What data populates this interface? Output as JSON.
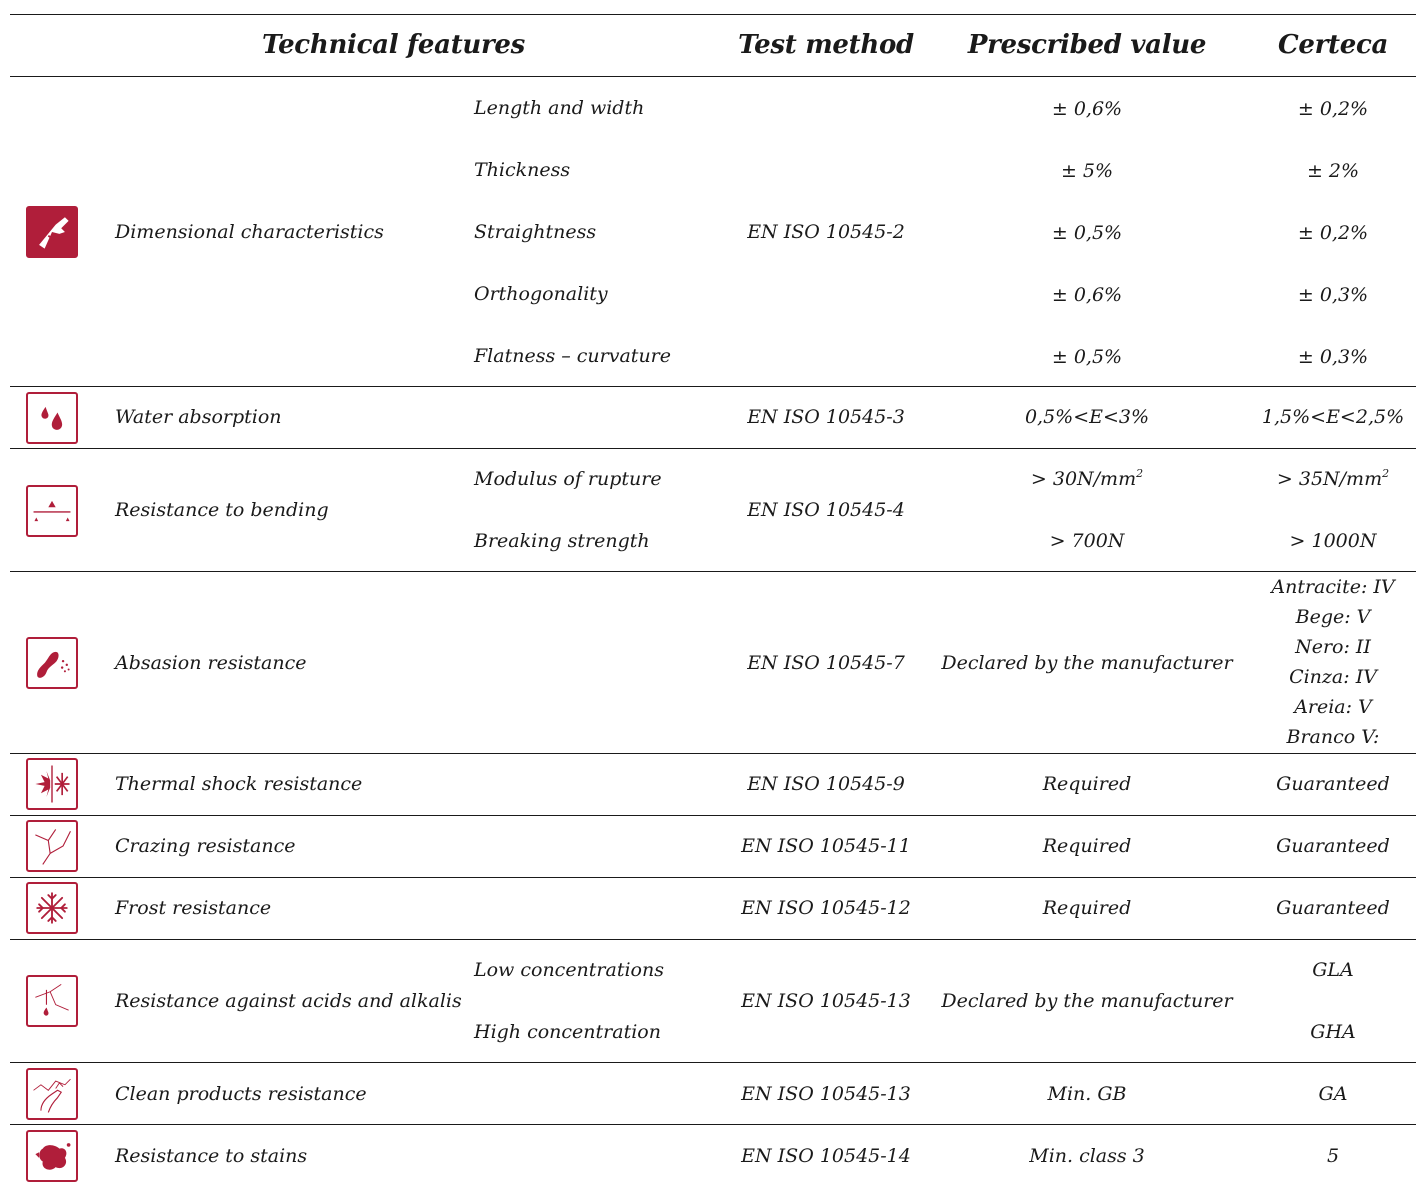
{
  "header": {
    "technical_features": "Technical features",
    "test_method": "Test method",
    "prescribed_value": "Prescribed value",
    "certeca": "Certeca"
  },
  "rows": [
    {
      "feature": "Dimensional characteristics",
      "icon": "caliper-icon",
      "method": "EN ISO 10545-2",
      "subs": [
        {
          "name": "Length and width",
          "prescribed": "± 0,6%",
          "certeca": "± 0,2%"
        },
        {
          "name": "Thickness",
          "prescribed": "± 5%",
          "certeca": "± 2%"
        },
        {
          "name": "Straightness",
          "prescribed": "± 0,5%",
          "certeca": "± 0,2%"
        },
        {
          "name": "Orthogonality",
          "prescribed": "± 0,6%",
          "certeca": "± 0,3%"
        },
        {
          "name": "Flatness – curvature",
          "prescribed": "± 0,5%",
          "certeca": "± 0,3%"
        }
      ]
    },
    {
      "feature": "Water absorption",
      "icon": "water-drops-icon",
      "method": "EN ISO 10545-3",
      "prescribed": "0,5%<E<3%",
      "certeca": "1,5%<E<2,5%"
    },
    {
      "feature": "Resistance to bending",
      "icon": "bending-icon",
      "method": "EN ISO 10545-4",
      "subs": [
        {
          "name": "Modulus of rupture",
          "prescribed": "> 30N/mm",
          "prescribed_sup": "2",
          "certeca": "> 35N/mm",
          "certeca_sup": "2"
        },
        {
          "name": "Breaking strength",
          "prescribed": "> 700N",
          "certeca": "> 1000N"
        }
      ]
    },
    {
      "feature": "Absasion resistance",
      "icon": "footprint-abrasion-icon",
      "method": "EN ISO 10545-7",
      "prescribed": "Declared by the manufacturer",
      "certeca_lines": [
        "Antracite: IV",
        "Bege: V",
        "Nero: II",
        "Cinza: IV",
        "Areia: V",
        "Branco V:"
      ]
    },
    {
      "feature": "Thermal shock resistance",
      "icon": "thermal-shock-icon",
      "method": "EN ISO 10545-9",
      "prescribed": "Required",
      "certeca": "Guaranteed"
    },
    {
      "feature": "Crazing resistance",
      "icon": "crazing-crack-icon",
      "method": "EN ISO 10545-11",
      "prescribed": "Required",
      "certeca": "Guaranteed"
    },
    {
      "feature": "Frost resistance",
      "icon": "snowflake-icon",
      "method": "EN ISO 10545-12",
      "prescribed": "Required",
      "certeca": "Guaranteed"
    },
    {
      "feature": "Resistance against acids and alkalis",
      "icon": "acid-drop-icon",
      "method": "EN ISO 10545-13",
      "prescribed": "Declared by the manufacturer",
      "subs": [
        {
          "name": "Low concentrations",
          "certeca": "GLA"
        },
        {
          "name": "High concentration",
          "certeca": "GHA"
        }
      ]
    },
    {
      "feature": "Clean products resistance",
      "icon": "cleaning-product-icon",
      "method": "EN ISO 10545-13",
      "prescribed": "Min. GB",
      "certeca": "GA"
    },
    {
      "feature": "Resistance to stains",
      "icon": "stain-icon",
      "method": "EN ISO 10545-14",
      "prescribed": "Min. class 3",
      "certeca": "5"
    }
  ],
  "colors": {
    "accent": "#b01e3a",
    "text": "#1a1a1a"
  }
}
